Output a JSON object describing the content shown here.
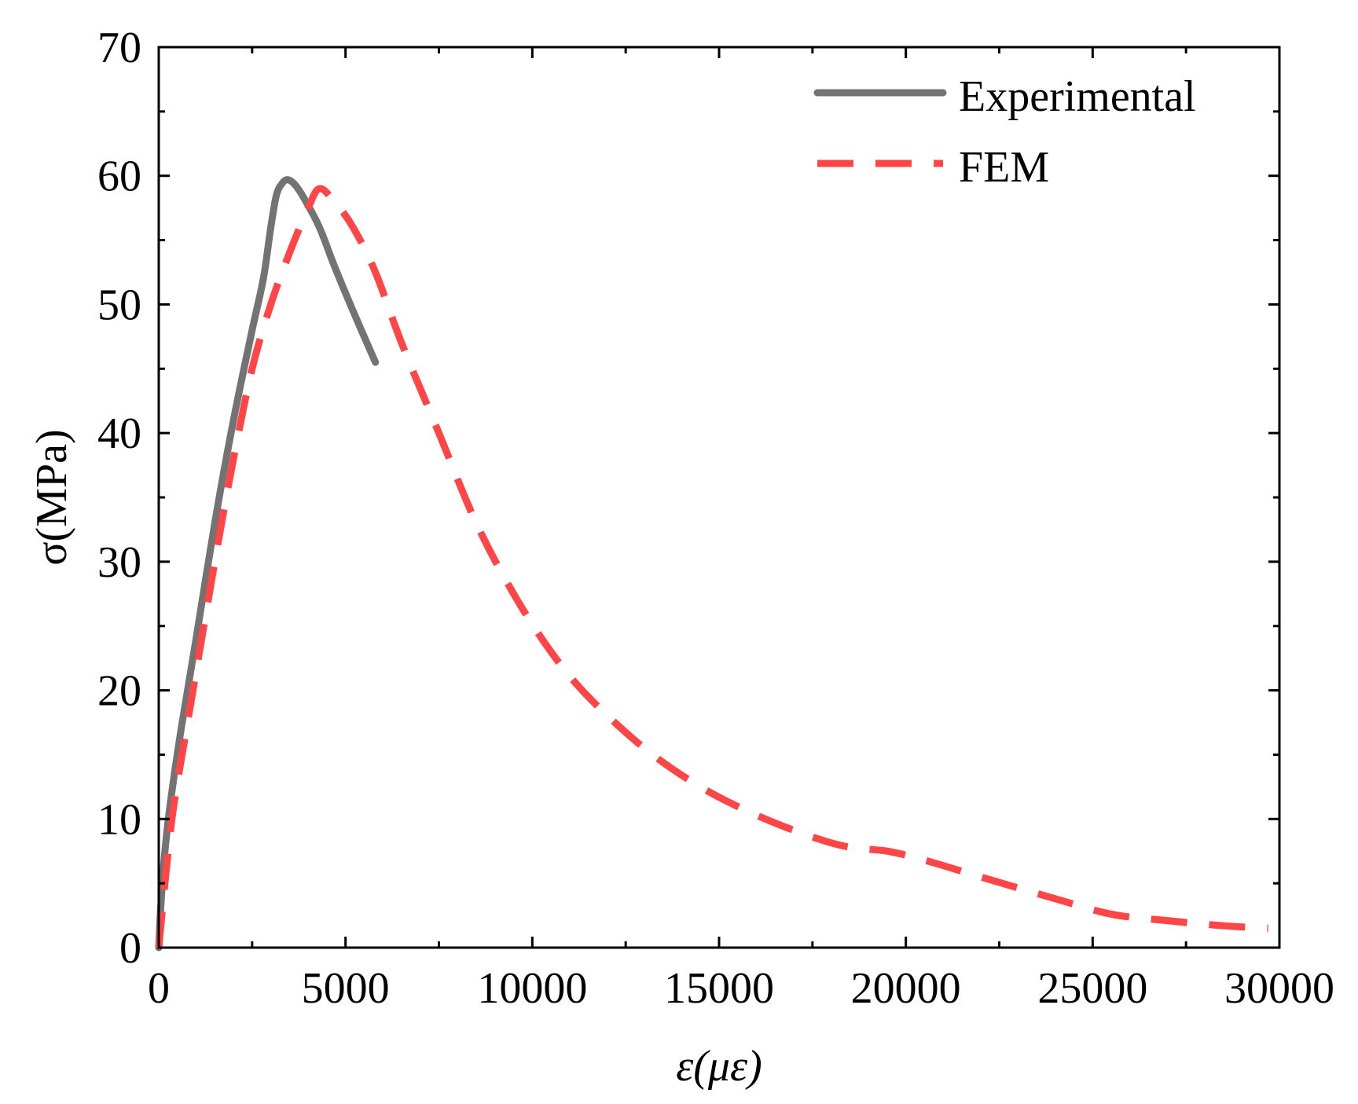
{
  "chart_data": {
    "type": "line",
    "title": "",
    "xlabel": "ε(με)",
    "ylabel": "σ(MPa)",
    "xlim": [
      0,
      30000
    ],
    "ylim": [
      0,
      70
    ],
    "xticks": [
      0,
      5000,
      10000,
      15000,
      20000,
      25000,
      30000
    ],
    "yticks": [
      0,
      10,
      20,
      30,
      40,
      50,
      60,
      70
    ],
    "x_minor_step": 2500,
    "y_minor_step": 5,
    "grid": false,
    "legend_position": "top-right",
    "series": [
      {
        "name": "Experimental",
        "color": "#737373",
        "style": "solid",
        "points": [
          [
            0,
            0
          ],
          [
            50,
            3
          ],
          [
            150,
            7
          ],
          [
            300,
            11
          ],
          [
            600,
            17
          ],
          [
            1000,
            24
          ],
          [
            1500,
            33
          ],
          [
            2000,
            41
          ],
          [
            2500,
            48
          ],
          [
            2800,
            52
          ],
          [
            3000,
            56
          ],
          [
            3150,
            58.5
          ],
          [
            3300,
            59.4
          ],
          [
            3450,
            59.7
          ],
          [
            3650,
            59.3
          ],
          [
            3900,
            58.2
          ],
          [
            4300,
            56
          ],
          [
            4700,
            53
          ],
          [
            5200,
            49.5
          ],
          [
            5800,
            45.5
          ]
        ]
      },
      {
        "name": "FEM",
        "color": "#ff4545",
        "style": "dashed",
        "points": [
          [
            0,
            0
          ],
          [
            200,
            6
          ],
          [
            400,
            11
          ],
          [
            800,
            18
          ],
          [
            1500,
            30
          ],
          [
            2000,
            38
          ],
          [
            2500,
            45
          ],
          [
            3000,
            50
          ],
          [
            3500,
            54
          ],
          [
            4000,
            57.5
          ],
          [
            4300,
            59
          ],
          [
            4700,
            58
          ],
          [
            5200,
            56
          ],
          [
            5800,
            52.5
          ],
          [
            6500,
            47
          ],
          [
            7500,
            40
          ],
          [
            8500,
            33
          ],
          [
            9500,
            27.5
          ],
          [
            10500,
            23
          ],
          [
            11500,
            19.5
          ],
          [
            13000,
            15.5
          ],
          [
            14500,
            12.5
          ],
          [
            16000,
            10.3
          ],
          [
            17500,
            8.6
          ],
          [
            18500,
            7.8
          ],
          [
            19500,
            7.5
          ],
          [
            20500,
            6.8
          ],
          [
            22000,
            5.5
          ],
          [
            24000,
            3.8
          ],
          [
            25500,
            2.6
          ],
          [
            27000,
            2.1
          ],
          [
            28500,
            1.7
          ],
          [
            29700,
            1.5
          ]
        ]
      }
    ]
  }
}
